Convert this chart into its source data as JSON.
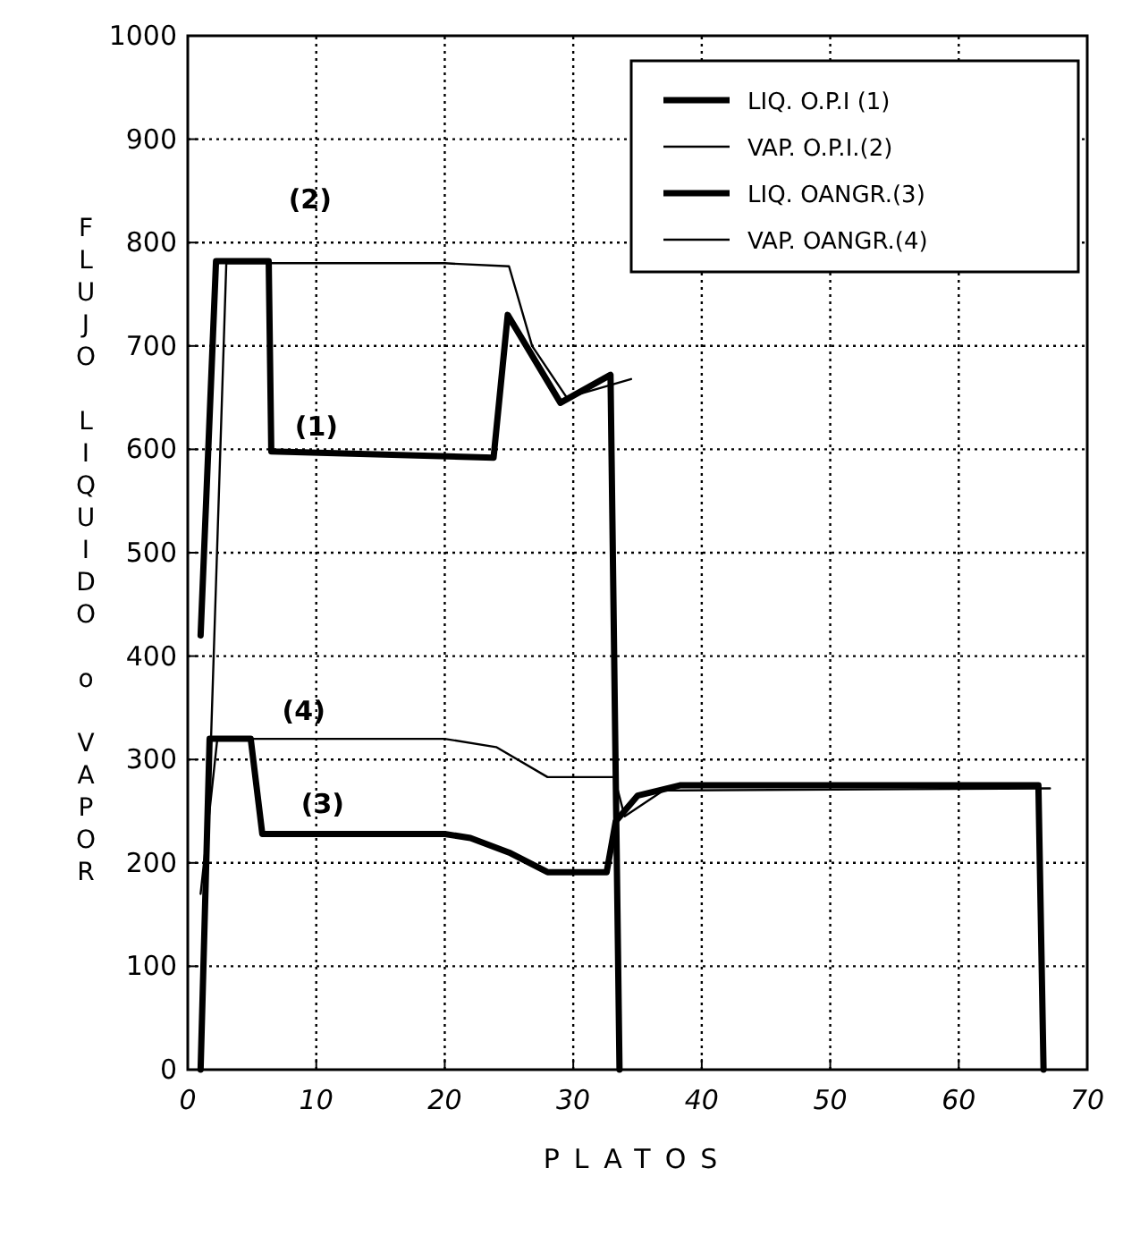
{
  "chart_data": {
    "type": "line",
    "xlabel": "PLATOS",
    "ylabel": "FLUJO LIQUIDO o VAPOR",
    "xlim": [
      0,
      70
    ],
    "xticks": [
      0,
      10,
      20,
      30,
      40,
      50,
      60,
      70
    ],
    "ylim": [
      0,
      1000
    ],
    "yticks": [
      0,
      100,
      200,
      300,
      400,
      500,
      600,
      700,
      800,
      900,
      1000
    ],
    "grid": true,
    "legend": "top right",
    "line_style": "solid",
    "marker": "none",
    "series": [
      {
        "name": "LIQ. O.P.I (1)",
        "color": "#000000",
        "x": [
          1,
          2.2,
          6.3,
          6.5,
          23.8,
          24.9,
          29,
          32.9,
          33.6
        ],
        "values": [
          420,
          782,
          782,
          598,
          592,
          730,
          645,
          672,
          0
        ]
      },
      {
        "name": "VAP. O.P.I.(2)",
        "color": "#000000",
        "x": [
          1.5,
          3,
          20,
          25,
          26.8,
          29.5,
          34.5
        ],
        "values": [
          200,
          780,
          780,
          777,
          700,
          650,
          668
        ]
      },
      {
        "name": "LIQ. OANGR.(3)",
        "color": "#000000",
        "x": [
          1,
          1.7,
          4.9,
          5.8,
          20,
          22,
          25,
          28,
          32.6,
          33.3,
          35,
          38.3,
          66.2,
          66.6
        ],
        "values": [
          0,
          320,
          320,
          228,
          228,
          224,
          210,
          191,
          191,
          240,
          265,
          275,
          275,
          0
        ]
      },
      {
        "name": "VAP. OANGR.(4)",
        "color": "#000000",
        "x": [
          1,
          2.3,
          20,
          24,
          28,
          33.2,
          34,
          37,
          67.1
        ],
        "values": [
          170,
          320,
          320,
          312,
          283,
          283,
          245,
          270,
          272
        ]
      }
    ],
    "annotations": [
      "(2)",
      "(1)",
      "(4)",
      "(3)"
    ]
  }
}
